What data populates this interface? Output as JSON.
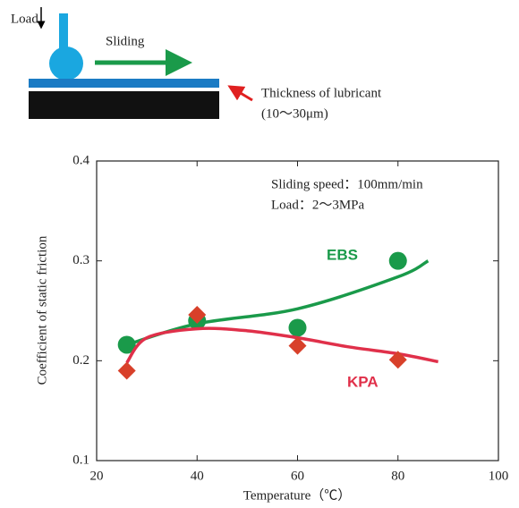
{
  "diagram": {
    "load": "Load",
    "sliding": "Sliding",
    "thickness": "Thickness of lubricant",
    "thickness_range": "(10～30μm)"
  },
  "chart_data": {
    "type": "scatter",
    "annotations": [
      "Sliding speed：100mm/min",
      "Load：2～3MPa"
    ],
    "xlabel": "Temperature（℃）",
    "ylabel": "Coefficient of static friction",
    "xlim": [
      20,
      100
    ],
    "xticks": [
      20,
      40,
      60,
      80,
      100
    ],
    "ylim": [
      0.1,
      0.4
    ],
    "yticks": [
      0.1,
      0.2,
      0.3,
      0.4
    ],
    "series": [
      {
        "name": "EBS",
        "color": "#1a9a4a",
        "marker": "circle",
        "x": [
          26,
          40,
          60,
          80
        ],
        "values": [
          0.216,
          0.24,
          0.233,
          0.3
        ],
        "fit": {
          "x": [
            26,
            40,
            60,
            80,
            86
          ],
          "values": [
            0.216,
            0.237,
            0.252,
            0.284,
            0.3
          ]
        }
      },
      {
        "name": "KPA",
        "color": "#e0304a",
        "marker": "diamond",
        "x": [
          26,
          40,
          60,
          80
        ],
        "values": [
          0.19,
          0.246,
          0.215,
          0.201
        ],
        "fit": {
          "x": [
            26,
            30,
            40,
            50,
            60,
            70,
            80,
            88
          ],
          "values": [
            0.198,
            0.223,
            0.232,
            0.23,
            0.223,
            0.214,
            0.207,
            0.199
          ]
        }
      }
    ]
  }
}
